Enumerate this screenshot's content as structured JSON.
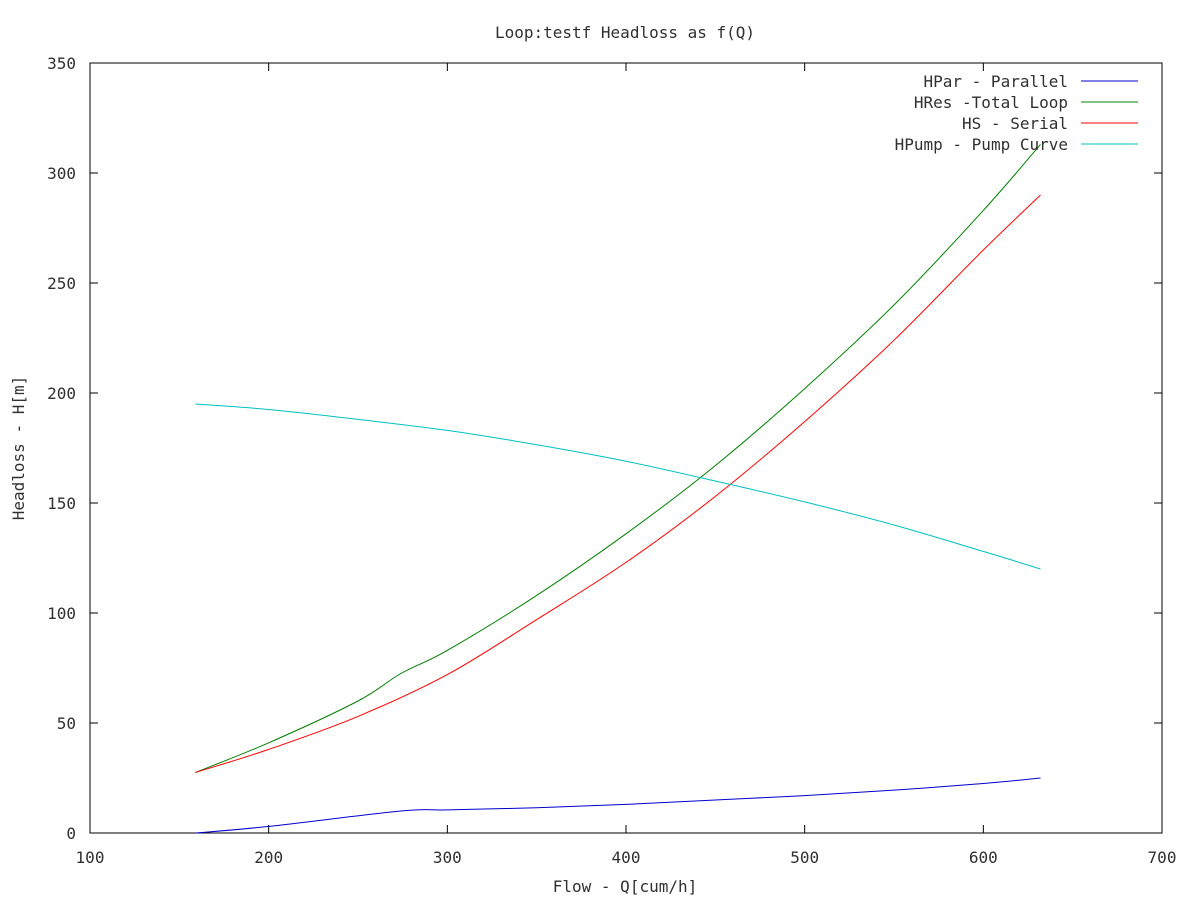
{
  "chart_data": {
    "type": "line",
    "title": "Loop:testf Headloss as f(Q)",
    "xlabel": "Flow - Q[cum/h]",
    "ylabel": "Headloss - H[m]",
    "xlim": [
      100,
      700
    ],
    "ylim": [
      0,
      350
    ],
    "xticks": [
      100,
      200,
      300,
      400,
      500,
      600,
      700
    ],
    "yticks": [
      0,
      50,
      100,
      150,
      200,
      250,
      300,
      350
    ],
    "grid": false,
    "legend_position": "top-right",
    "series": [
      {
        "name": "HPar - Parallel",
        "color": "#0000cc",
        "x": [
          159,
          200,
          274,
          300,
          350,
          400,
          450,
          500,
          550,
          600,
          632
        ],
        "y": [
          0,
          3,
          10,
          10.5,
          11.5,
          13,
          15,
          17,
          19.5,
          22.5,
          25
        ]
      },
      {
        "name": "HRes -Total Loop",
        "color": "#008000",
        "x": [
          159,
          200,
          250,
          274,
          300,
          350,
          400,
          450,
          500,
          550,
          600,
          632
        ],
        "y": [
          27.5,
          41,
          60,
          72.5,
          83,
          108,
          136,
          167,
          202,
          240,
          283,
          313
        ]
      },
      {
        "name": "HS - Serial",
        "color": "#ff0000",
        "x": [
          159,
          200,
          250,
          300,
          350,
          400,
          450,
          500,
          550,
          600,
          632
        ],
        "y": [
          27.5,
          38,
          53,
          72,
          97,
          123,
          153,
          187,
          224,
          265,
          290
        ]
      },
      {
        "name": "HPump - Pump Curve",
        "color": "#00c0c0",
        "x": [
          159,
          200,
          250,
          300,
          350,
          400,
          450,
          500,
          550,
          600,
          632
        ],
        "y": [
          195,
          192.5,
          188,
          183,
          176.5,
          169,
          160,
          150.5,
          140,
          128,
          120
        ]
      }
    ]
  }
}
